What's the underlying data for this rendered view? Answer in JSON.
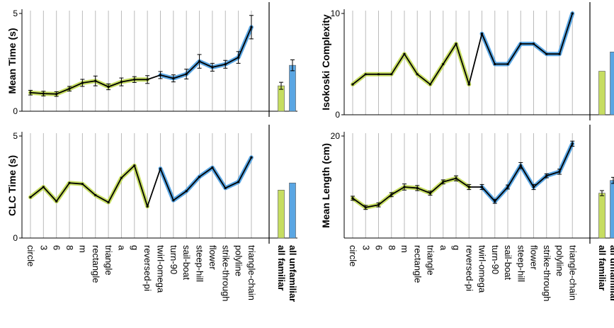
{
  "colors": {
    "familiar": "#c6dd61",
    "unfamiliar": "#5aa6e3",
    "line": "#000000",
    "grid": "#bbbbbb"
  },
  "categories": [
    "circle",
    "3",
    "6",
    "8",
    "m",
    "rectangle",
    "triangle",
    "a",
    "g",
    "reversed-pi",
    "twirl-omega",
    "turn-90",
    "sail-boat",
    "steep-hill",
    "flower",
    "strike-through",
    "polyline",
    "triangle-chain"
  ],
  "familiar_count": 10,
  "summary_labels": [
    "all familiar",
    "all unfamiliar"
  ],
  "chart_data": [
    {
      "type": "line",
      "ylabel": "Mean Time (s)",
      "ylim": [
        0,
        5
      ],
      "yticks": [
        "0",
        "5"
      ],
      "error_bars": true,
      "values": [
        0.95,
        0.9,
        0.88,
        1.15,
        1.45,
        1.55,
        1.25,
        1.5,
        1.62,
        1.62,
        1.85,
        1.68,
        1.9,
        2.55,
        2.25,
        2.4,
        2.75,
        4.3
      ],
      "errors": [
        0.12,
        0.12,
        0.12,
        0.12,
        0.18,
        0.25,
        0.15,
        0.2,
        0.15,
        0.2,
        0.18,
        0.18,
        0.25,
        0.35,
        0.2,
        0.2,
        0.3,
        0.6
      ],
      "summary": {
        "all familiar": 1.3,
        "all unfamiliar": 2.35
      },
      "summary_errors": {
        "all familiar": 0.18,
        "all unfamiliar": 0.28
      }
    },
    {
      "type": "line",
      "ylabel": "Isokoski Complexity",
      "ylim": [
        0,
        10
      ],
      "yticks": [
        "0",
        "10"
      ],
      "error_bars": false,
      "values": [
        3,
        4,
        4,
        4,
        6,
        4,
        3,
        5,
        7,
        3,
        8,
        5,
        5,
        7,
        7,
        6,
        6,
        10
      ],
      "summary": {
        "all familiar": 4.3,
        "all unfamiliar": 6.2
      }
    },
    {
      "type": "line",
      "ylabel": "CLC Time (s)",
      "ylim": [
        0,
        5
      ],
      "yticks": [
        "0",
        "5"
      ],
      "error_bars": false,
      "values": [
        2,
        2.5,
        1.8,
        2.7,
        2.65,
        2.1,
        1.75,
        2.95,
        3.55,
        1.55,
        3.4,
        1.85,
        2.3,
        3.0,
        3.45,
        2.45,
        2.75,
        3.95
      ],
      "summary": {
        "all familiar": 2.35,
        "all unfamiliar": 2.7
      }
    },
    {
      "type": "line",
      "ylabel": "Mean Length (cm)",
      "ylim": [
        0,
        20
      ],
      "yticks": [
        "20"
      ],
      "error_bars": true,
      "values": [
        7.8,
        6.0,
        6.5,
        8.5,
        10.0,
        9.8,
        8.8,
        11.0,
        11.7,
        10.0,
        10.0,
        7.2,
        10.0,
        14.2,
        10.0,
        12.2,
        13.0,
        18.5
      ],
      "errors": [
        0.4,
        0.4,
        0.4,
        0.4,
        0.6,
        0.5,
        0.4,
        0.4,
        0.5,
        0.5,
        0.5,
        0.4,
        0.4,
        0.6,
        0.5,
        0.4,
        0.5,
        0.5
      ],
      "summary": {
        "all familiar": 8.8,
        "all unfamiliar": 11.3
      },
      "summary_errors": {
        "all familiar": 0.5,
        "all unfamiliar": 0.6
      }
    }
  ]
}
